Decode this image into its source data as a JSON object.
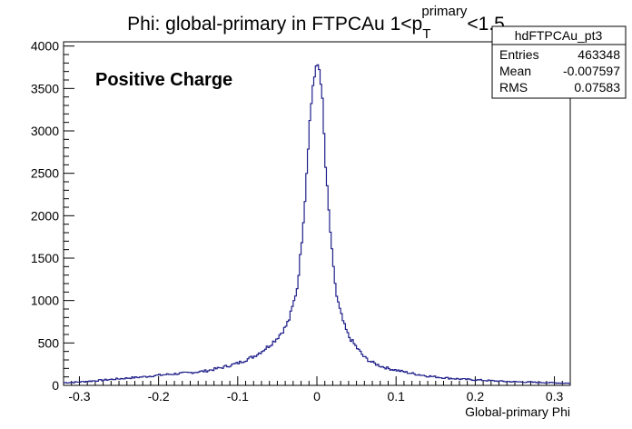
{
  "chart_data": {
    "type": "histogram",
    "title": {
      "main": "Phi: global-primary in FTPCAu 1<p",
      "sub": "T",
      "sup": "primary",
      "tail": "<1.5"
    },
    "xlabel": "Global-primary Phi",
    "ylabel": "",
    "annotation": "Positive Charge",
    "xlim": [
      -0.32,
      0.32
    ],
    "ylim": [
      0,
      4050
    ],
    "x_ticks": [
      -0.3,
      -0.2,
      -0.1,
      0,
      0.1,
      0.2,
      0.3
    ],
    "y_ticks": [
      0,
      500,
      1000,
      1500,
      2000,
      2500,
      3000,
      3500,
      4000
    ],
    "line_color": "#1f1f8a",
    "grid": false,
    "stats_box": {
      "name": "hdFTPCAu_pt3",
      "rows": [
        {
          "label": "Entries",
          "value": "463348"
        },
        {
          "label": "Mean",
          "value": "-0.007597"
        },
        {
          "label": "RMS",
          "value": "0.07583"
        }
      ]
    },
    "series": [
      {
        "points": [
          [
            -0.32,
            30
          ],
          [
            -0.3,
            40
          ],
          [
            -0.28,
            55
          ],
          [
            -0.26,
            70
          ],
          [
            -0.24,
            85
          ],
          [
            -0.22,
            100
          ],
          [
            -0.2,
            120
          ],
          [
            -0.18,
            135
          ],
          [
            -0.16,
            150
          ],
          [
            -0.14,
            170
          ],
          [
            -0.12,
            210
          ],
          [
            -0.1,
            260
          ],
          [
            -0.09,
            300
          ],
          [
            -0.08,
            340
          ],
          [
            -0.07,
            400
          ],
          [
            -0.06,
            470
          ],
          [
            -0.05,
            560
          ],
          [
            -0.04,
            680
          ],
          [
            -0.035,
            780
          ],
          [
            -0.03,
            950
          ],
          [
            -0.025,
            1150
          ],
          [
            -0.02,
            1600
          ],
          [
            -0.015,
            2200
          ],
          [
            -0.01,
            3000
          ],
          [
            -0.005,
            3550
          ],
          [
            0.0,
            3750
          ],
          [
            0.002,
            3800
          ],
          [
            0.005,
            3600
          ],
          [
            0.008,
            3200
          ],
          [
            0.01,
            2700
          ],
          [
            0.015,
            2050
          ],
          [
            0.02,
            1450
          ],
          [
            0.025,
            1050
          ],
          [
            0.03,
            850
          ],
          [
            0.035,
            700
          ],
          [
            0.04,
            580
          ],
          [
            0.05,
            450
          ],
          [
            0.06,
            330
          ],
          [
            0.07,
            270
          ],
          [
            0.08,
            230
          ],
          [
            0.09,
            200
          ],
          [
            0.1,
            180
          ],
          [
            0.12,
            140
          ],
          [
            0.14,
            110
          ],
          [
            0.16,
            90
          ],
          [
            0.18,
            75
          ],
          [
            0.2,
            65
          ],
          [
            0.22,
            55
          ],
          [
            0.24,
            45
          ],
          [
            0.26,
            40
          ],
          [
            0.28,
            35
          ],
          [
            0.3,
            30
          ],
          [
            0.32,
            25
          ]
        ]
      }
    ]
  }
}
